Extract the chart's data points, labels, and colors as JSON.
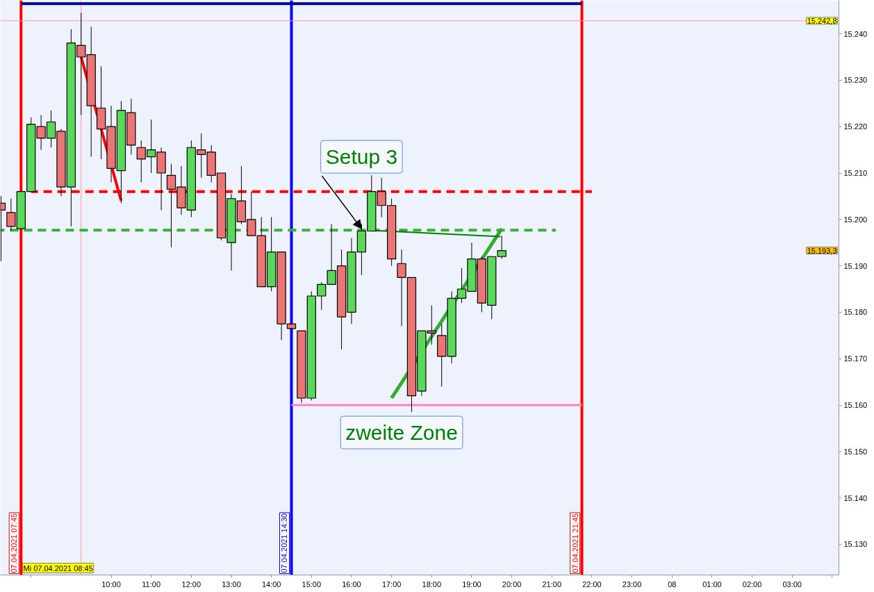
{
  "chart_data": {
    "type": "candlestick",
    "x": [
      "2021-04-07T07:15",
      "2021-04-07T07:30",
      "2021-04-07T07:45",
      "2021-04-07T08:00",
      "2021-04-07T08:15",
      "2021-04-07T08:30",
      "2021-04-07T08:45",
      "2021-04-07T09:00",
      "2021-04-07T09:15",
      "2021-04-07T09:30",
      "2021-04-07T09:45",
      "2021-04-07T10:00",
      "2021-04-07T10:15",
      "2021-04-07T10:30",
      "2021-04-07T10:45",
      "2021-04-07T11:00",
      "2021-04-07T11:15",
      "2021-04-07T11:30",
      "2021-04-07T11:45",
      "2021-04-07T12:00",
      "2021-04-07T12:15",
      "2021-04-07T12:30",
      "2021-04-07T12:45",
      "2021-04-07T13:00",
      "2021-04-07T13:15",
      "2021-04-07T13:30",
      "2021-04-07T13:45",
      "2021-04-07T14:00",
      "2021-04-07T14:15",
      "2021-04-07T14:30",
      "2021-04-07T14:45",
      "2021-04-07T15:00",
      "2021-04-07T15:15",
      "2021-04-07T15:30",
      "2021-04-07T15:45",
      "2021-04-07T16:00",
      "2021-04-07T16:15",
      "2021-04-07T16:30",
      "2021-04-07T16:45",
      "2021-04-07T17:00",
      "2021-04-07T17:15",
      "2021-04-07T17:30",
      "2021-04-07T17:45",
      "2021-04-07T18:00",
      "2021-04-07T18:15",
      "2021-04-07T18:30",
      "2021-04-07T18:45",
      "2021-04-07T19:00",
      "2021-04-07T19:15",
      "2021-04-07T19:30",
      "2021-04-07T19:45"
    ],
    "ohlc": [
      [
        15203.5,
        15205,
        15191,
        15202
      ],
      [
        15201.5,
        15204.5,
        15197.5,
        15198.5
      ],
      [
        15198,
        15206,
        15198,
        15206
      ],
      [
        15206,
        15222,
        15206,
        15220.5
      ],
      [
        15220,
        15222.5,
        15215,
        15217.5
      ],
      [
        15217.5,
        15223.5,
        15215.5,
        15221
      ],
      [
        15219,
        15219.5,
        15205,
        15207
      ],
      [
        15207,
        15241,
        15198.5,
        15238
      ],
      [
        15237.5,
        15244.5,
        15222.5,
        15235
      ],
      [
        15235.5,
        15241.5,
        15213.5,
        15224.5
      ],
      [
        15224,
        15233,
        15213,
        15219.5
      ],
      [
        15220,
        15224.5,
        15208,
        15211
      ],
      [
        15210.5,
        15225.5,
        15203.5,
        15223.5
      ],
      [
        15223,
        15226,
        15214,
        15216
      ],
      [
        15215.5,
        15217,
        15208,
        15213
      ],
      [
        15213.5,
        15221.5,
        15210,
        15215
      ],
      [
        15214.5,
        15215.5,
        15202,
        15210
      ],
      [
        15209.5,
        15212,
        15194,
        15206.5
      ],
      [
        15207,
        15211.5,
        15201,
        15202.5
      ],
      [
        15202,
        15217,
        15200.5,
        15215.5
      ],
      [
        15215,
        15218.5,
        15209,
        15214
      ],
      [
        15214.5,
        15216,
        15208,
        15209.5
      ],
      [
        15210,
        15210,
        15195.5,
        15196
      ],
      [
        15195,
        15205.5,
        15189,
        15204.5
      ],
      [
        15204,
        15211.5,
        15199,
        15199.5
      ],
      [
        15200,
        15206,
        15196.5,
        15196.5
      ],
      [
        15196.5,
        15200.5,
        15185.5,
        15185.5
      ],
      [
        15185.5,
        15200.5,
        15184.5,
        15193
      ],
      [
        15193,
        15193,
        15174,
        15177.5
      ],
      [
        15177.5,
        15177.5,
        15176.5,
        15176.5
      ],
      [
        15176,
        15176,
        15160.5,
        15161.5
      ],
      [
        15161.5,
        15184.5,
        15161,
        15183.5
      ],
      [
        15183.5,
        15186.5,
        15180.5,
        15186
      ],
      [
        15186,
        15199,
        15186,
        15189
      ],
      [
        15190,
        15193.5,
        15172,
        15179
      ],
      [
        15180,
        15196,
        15177.5,
        15193
      ],
      [
        15193,
        15199,
        15188,
        15197.5
      ],
      [
        15197.5,
        15209.5,
        15197.5,
        15206
      ],
      [
        15206,
        15209,
        15200.5,
        15203
      ],
      [
        15203,
        15204.5,
        15190,
        15191.5
      ],
      [
        15190.5,
        15193.5,
        15177,
        15187.5
      ],
      [
        15187.5,
        15187.5,
        15158.5,
        15162
      ],
      [
        15163,
        15176,
        15162,
        15176
      ],
      [
        15176,
        15181.5,
        15173,
        15175.5
      ],
      [
        15175,
        15177.5,
        15164,
        15170.5
      ],
      [
        15170.5,
        15184.5,
        15169,
        15183
      ],
      [
        15183,
        15189.5,
        15182,
        15185
      ],
      [
        15184.5,
        15195,
        15184.5,
        15191.5
      ],
      [
        15191.5,
        15192,
        15180,
        15182
      ],
      [
        15181.5,
        15192,
        15178.5,
        15192
      ],
      [
        15192,
        15196.5,
        15191.5,
        15193.3
      ]
    ],
    "colors": [
      "#eb7575",
      "#eb7575",
      "#5ad85a",
      "#5ad85a",
      "#eb7575",
      "#5ad85a",
      "#eb7575",
      "#5ad85a",
      "#eb7575",
      "#eb7575",
      "#eb7575",
      "#eb7575",
      "#5ad85a",
      "#eb7575",
      "#eb7575",
      "#5ad85a",
      "#eb7575",
      "#eb7575",
      "#eb7575",
      "#5ad85a",
      "#eb7575",
      "#eb7575",
      "#eb7575",
      "#5ad85a",
      "#eb7575",
      "#eb7575",
      "#eb7575",
      "#5ad85a",
      "#eb7575",
      "#eb7575",
      "#eb7575",
      "#5ad85a",
      "#5ad85a",
      "#5ad85a",
      "#eb7575",
      "#5ad85a",
      "#5ad85a",
      "#5ad85a",
      "#eb7575",
      "#eb7575",
      "#eb7575",
      "#eb7575",
      "#5ad85a",
      "#eb7575",
      "#eb7575",
      "#5ad85a",
      "#5ad85a",
      "#5ad85a",
      "#eb7575",
      "#5ad85a",
      "#5ad85a"
    ],
    "series": [
      {
        "type": "line",
        "x": [
          "2021-04-07T07:45",
          "2021-04-07T21:45"
        ],
        "values": [
          15246.5,
          15246.5
        ],
        "color": "#00009c"
      },
      {
        "type": "line",
        "x": [
          "2021-04-07T08:00",
          "2021-04-07T22:00"
        ],
        "values": [
          15206,
          15206
        ],
        "color": "#ff0000",
        "line_style": "dashed"
      },
      {
        "type": "line",
        "x": [
          "2021-04-07T07:14",
          "2021-04-07T21:06"
        ],
        "values": [
          15197.7,
          15197.7
        ],
        "color": "#38b038",
        "line_style": "dashed"
      },
      {
        "type": "line",
        "x": [
          "2021-04-07T14:30",
          "2021-04-07T21:45"
        ],
        "values": [
          15160,
          15160
        ],
        "color": "#ff80c0"
      },
      {
        "type": "line",
        "x": [
          "2021-04-07T09:15",
          "2021-04-07T10:15"
        ],
        "values": [
          15235,
          15204
        ],
        "color": "#ff0000"
      },
      {
        "type": "line",
        "x": [
          "2021-04-07T17:00",
          "2021-04-07T19:45"
        ],
        "values": [
          15161.5,
          15198
        ],
        "color": "#33aa33"
      },
      {
        "type": "line",
        "x": [
          "2021-04-07T16:24",
          "2021-04-07T19:43"
        ],
        "values": [
          15197.7,
          15196.3
        ],
        "color": "#008000"
      }
    ],
    "ref_lines": [
      {
        "axis": "x",
        "value": "2021-04-07T07:45",
        "label": "07.04.2021 07:45",
        "color": "#ff0000"
      },
      {
        "axis": "x",
        "value": "2021-04-07T14:30",
        "label": "07.04.2021 14:30",
        "color": "#0000ff"
      },
      {
        "axis": "x",
        "value": "2021-04-07T21:45",
        "label": "07.04.2021 21:45",
        "color": "#ff0000"
      },
      {
        "axis": "x",
        "value": "2021-04-07T09:15",
        "color": "#ff9999"
      },
      {
        "axis": "y",
        "value": 15242.8,
        "label": "15.242,8",
        "color": "#ff9999"
      }
    ],
    "annotations": [
      {
        "text": "Setup 3",
        "x": "2021-04-07T16:15",
        "y": 15198
      },
      {
        "text": "zweite Zone",
        "x": "2021-04-07T17:15",
        "y": 15160
      },
      "Mi 07.04.2021 08:45",
      "15.193,3"
    ],
    "xlim": [
      "2021-04-07T07:14",
      "2021-04-08T04:10"
    ],
    "ylim": [
      15123.4,
      15247.2
    ],
    "xticks": [
      {
        "value": "2021-04-07T08:00",
        "label": null
      },
      {
        "value": "2021-04-07T10:00",
        "label": "10:00"
      },
      {
        "value": "2021-04-07T11:00",
        "label": "11:00"
      },
      {
        "value": "2021-04-07T12:00",
        "label": "12:00"
      },
      {
        "value": "2021-04-07T13:00",
        "label": "13:00"
      },
      {
        "value": "2021-04-07T14:00",
        "label": "14:00"
      },
      {
        "value": "2021-04-07T15:00",
        "label": "15:00"
      },
      {
        "value": "2021-04-07T16:00",
        "label": "16:00"
      },
      {
        "value": "2021-04-07T17:00",
        "label": "17:00"
      },
      {
        "value": "2021-04-07T18:00",
        "label": "18:00"
      },
      {
        "value": "2021-04-07T19:00",
        "label": "19:00"
      },
      {
        "value": "2021-04-07T20:00",
        "label": "20:00"
      },
      {
        "value": "2021-04-07T21:00",
        "label": "21:00"
      },
      {
        "value": "2021-04-07T22:00",
        "label": "22:00"
      },
      {
        "value": "2021-04-07T23:00",
        "label": "23:00"
      },
      {
        "value": "2021-04-08T00:00",
        "label": "08"
      },
      {
        "value": "2021-04-08T01:00",
        "label": "01:00"
      },
      {
        "value": "2021-04-08T02:00",
        "label": "02:00"
      },
      {
        "value": "2021-04-08T03:00",
        "label": "03:00"
      },
      {
        "value": "2021-04-08T04:00",
        "label": null
      }
    ],
    "yticks": [
      {
        "value": 15130,
        "label": "15.130"
      },
      {
        "value": 15140,
        "label": "15.140"
      },
      {
        "value": 15150,
        "label": "15.150"
      },
      {
        "value": 15160,
        "label": "15.160"
      },
      {
        "value": 15170,
        "label": "15.170"
      },
      {
        "value": 15180,
        "label": "15.180"
      },
      {
        "value": 15190,
        "label": "15.190"
      },
      {
        "value": 15200,
        "label": "15.200"
      },
      {
        "value": 15210,
        "label": "15.210"
      },
      {
        "value": 15220,
        "label": "15.220"
      },
      {
        "value": 15230,
        "label": "15.230"
      },
      {
        "value": 15240,
        "label": "15.240"
      }
    ]
  }
}
